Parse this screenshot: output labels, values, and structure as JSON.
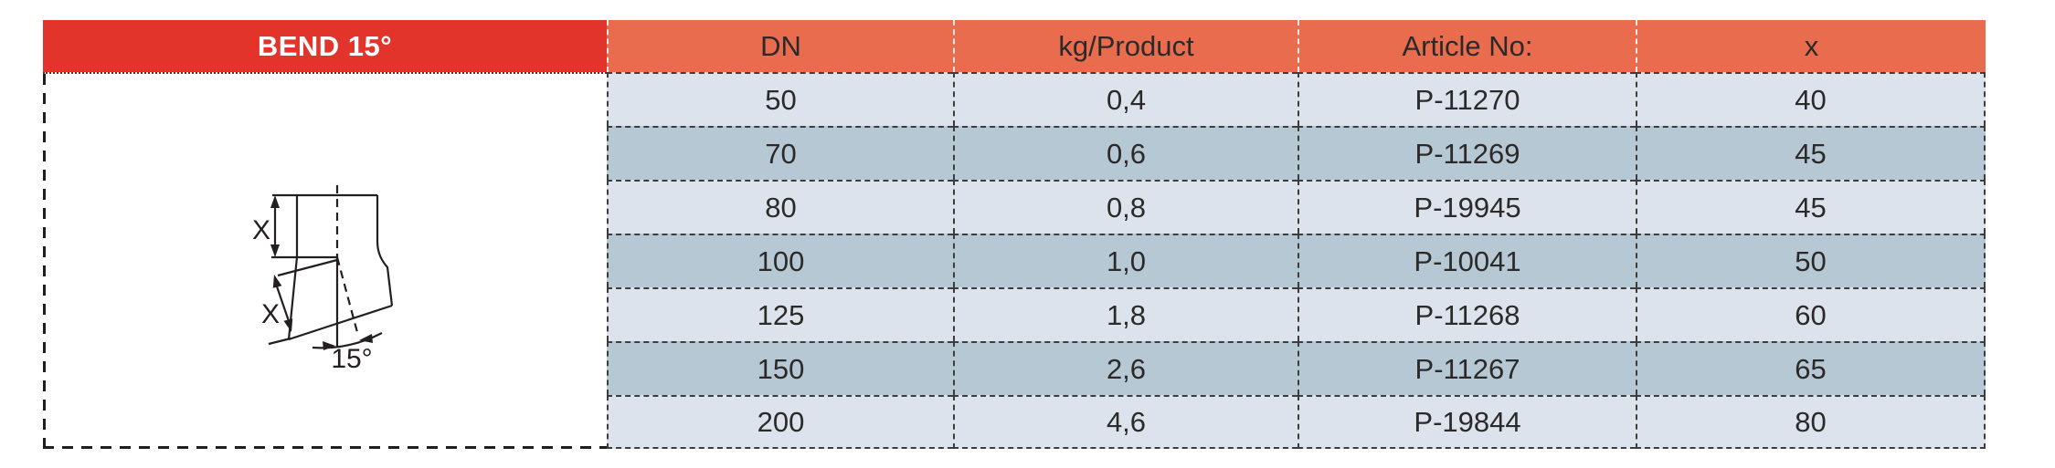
{
  "title": "BEND 15°",
  "table": {
    "columns": [
      "DN",
      "kg/Product",
      "Article No:",
      "x"
    ],
    "rows": [
      [
        "50",
        "0,4",
        "P-11270",
        "40"
      ],
      [
        "70",
        "0,6",
        "P-11269",
        "45"
      ],
      [
        "80",
        "0,8",
        "P-19945",
        "45"
      ],
      [
        "100",
        "1,0",
        "P-10041",
        "50"
      ],
      [
        "125",
        "1,8",
        "P-11268",
        "60"
      ],
      [
        "150",
        "2,6",
        "P-11267",
        "65"
      ],
      [
        "200",
        "4,6",
        "P-19844",
        "80"
      ]
    ]
  },
  "diagram": {
    "upper_dim_label": "X",
    "lower_dim_label": "X",
    "angle_label": "15°"
  },
  "colors": {
    "title_red": "#e2342b",
    "header_orange": "#e96c4e",
    "row_light": "#dce3ed",
    "row_dark": "#b7c8d5",
    "text_dark": "#2b2a29",
    "rule_dark": "#3d3d3d",
    "drawing_line": "#231f20",
    "header_rule_white": "#ffffff"
  }
}
